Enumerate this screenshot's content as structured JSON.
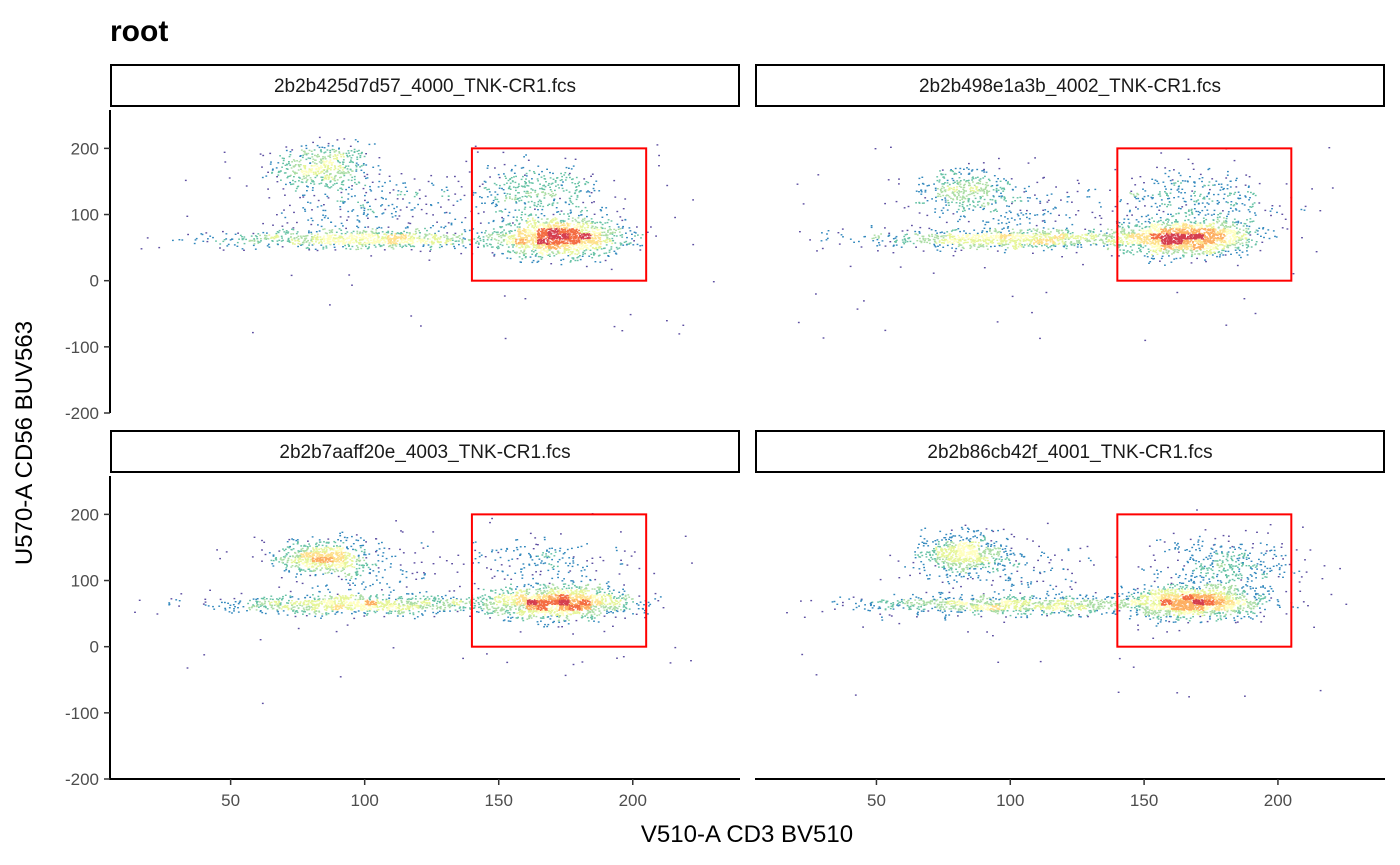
{
  "chart_data": {
    "type": "scatter",
    "title": "root",
    "xlabel": "V510-A CD3 BV510",
    "ylabel": "U570-A CD56 BUV563",
    "xlim": [
      5,
      240
    ],
    "ylim": [
      -200,
      258
    ],
    "x_ticks": [
      50,
      100,
      150,
      200
    ],
    "y_ticks": [
      -200,
      -100,
      0,
      100,
      200
    ],
    "grid": false,
    "legend": "none",
    "colors": {
      "density_low": "#5e4fa2",
      "density_mid": "#ffffbf",
      "density_high": "#d53e4f",
      "gate": "#ff0000",
      "axis": "#000000"
    },
    "gate": {
      "x": [
        140,
        205
      ],
      "y": [
        0,
        200
      ]
    },
    "panels": [
      {
        "strip": "2b2b425d7d57_4000_TNK-CR1.fcs",
        "clusters": [
          {
            "label": "cd56_bright",
            "x": 84,
            "y": 172,
            "sx": 9,
            "sy": 18,
            "n": 480
          },
          {
            "label": "cd56_dim_spread",
            "x": 102,
            "y": 110,
            "sx": 16,
            "sy": 26,
            "n": 220
          },
          {
            "label": "cd3_low_tail",
            "x": 100,
            "y": 64,
            "sx": 26,
            "sy": 7,
            "n": 850
          },
          {
            "label": "cd3_pos_main",
            "x": 172,
            "y": 66,
            "sx": 12,
            "sy": 14,
            "n": 1500
          },
          {
            "label": "cd3_pos_cd56_pos",
            "x": 163,
            "y": 135,
            "sx": 13,
            "sy": 20,
            "n": 380
          }
        ]
      },
      {
        "strip": "2b2b498e1a3b_4002_TNK-CR1.fcs",
        "clusters": [
          {
            "label": "cd56_bright",
            "x": 82,
            "y": 140,
            "sx": 9,
            "sy": 15,
            "n": 330
          },
          {
            "label": "cd56_dim_spread",
            "x": 100,
            "y": 105,
            "sx": 16,
            "sy": 25,
            "n": 180
          },
          {
            "label": "cd3_low_tail",
            "x": 102,
            "y": 64,
            "sx": 26,
            "sy": 7,
            "n": 900
          },
          {
            "label": "cd3_pos_main",
            "x": 165,
            "y": 66,
            "sx": 13,
            "sy": 13,
            "n": 1550
          },
          {
            "label": "cd3_pos_cd56_pos",
            "x": 168,
            "y": 125,
            "sx": 15,
            "sy": 22,
            "n": 320
          }
        ]
      },
      {
        "strip": "2b2b7aaff20e_4003_TNK-CR1.fcs",
        "clusters": [
          {
            "label": "cd56_bright",
            "x": 84,
            "y": 136,
            "sx": 8,
            "sy": 12,
            "n": 620
          },
          {
            "label": "cd56_dim_spread",
            "x": 100,
            "y": 120,
            "sx": 15,
            "sy": 24,
            "n": 180
          },
          {
            "label": "cd3_low_tail",
            "x": 98,
            "y": 64,
            "sx": 26,
            "sy": 7,
            "n": 950
          },
          {
            "label": "cd3_pos_main",
            "x": 172,
            "y": 68,
            "sx": 13,
            "sy": 12,
            "n": 1500
          },
          {
            "label": "cd3_pos_cd56_pos",
            "x": 165,
            "y": 130,
            "sx": 14,
            "sy": 20,
            "n": 180
          }
        ]
      },
      {
        "strip": "2b2b86cb42f_4001_TNK-CR1.fcs",
        "clusters": [
          {
            "label": "cd56_bright",
            "x": 82,
            "y": 142,
            "sx": 8,
            "sy": 15,
            "n": 600
          },
          {
            "label": "cd56_dim_spread",
            "x": 98,
            "y": 115,
            "sx": 15,
            "sy": 22,
            "n": 150
          },
          {
            "label": "cd3_low_tail",
            "x": 100,
            "y": 64,
            "sx": 27,
            "sy": 7,
            "n": 900
          },
          {
            "label": "cd3_pos_main",
            "x": 167,
            "y": 68,
            "sx": 13,
            "sy": 12,
            "n": 1500
          },
          {
            "label": "cd3_pos_cd56_pos",
            "x": 180,
            "y": 125,
            "sx": 13,
            "sy": 22,
            "n": 380
          }
        ]
      }
    ]
  }
}
